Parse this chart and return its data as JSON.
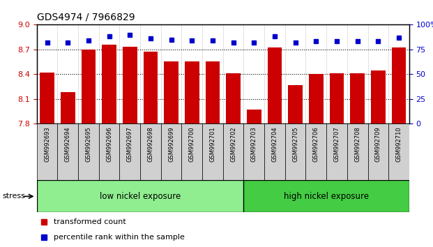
{
  "title": "GDS4974 / 7966829",
  "categories": [
    "GSM992693",
    "GSM992694",
    "GSM992695",
    "GSM992696",
    "GSM992697",
    "GSM992698",
    "GSM992699",
    "GSM992700",
    "GSM992701",
    "GSM992702",
    "GSM992703",
    "GSM992704",
    "GSM992705",
    "GSM992706",
    "GSM992707",
    "GSM992708",
    "GSM992709",
    "GSM992710"
  ],
  "bar_values": [
    8.42,
    8.18,
    8.7,
    8.76,
    8.73,
    8.67,
    8.55,
    8.55,
    8.55,
    8.41,
    7.97,
    8.72,
    8.27,
    8.4,
    8.41,
    8.41,
    8.44,
    8.72
  ],
  "percentile_values": [
    82,
    82,
    84,
    88,
    90,
    86,
    85,
    84,
    84,
    82,
    82,
    88,
    82,
    83,
    83,
    83,
    83,
    87
  ],
  "bar_color": "#cc0000",
  "percentile_color": "#0000cc",
  "ylim_left": [
    7.8,
    9.0
  ],
  "ylim_right": [
    0,
    100
  ],
  "yticks_left": [
    7.8,
    8.1,
    8.4,
    8.7,
    9.0
  ],
  "yticks_right": [
    0,
    25,
    50,
    75,
    100
  ],
  "group1_label": "low nickel exposure",
  "group2_label": "high nickel exposure",
  "group1_count": 10,
  "group1_color": "#90ee90",
  "group2_color": "#44cc44",
  "stress_label": "stress",
  "legend_bar_label": "transformed count",
  "legend_pct_label": "percentile rank within the sample",
  "tick_label_color_left": "#cc0000",
  "tick_label_color_right": "#0000cc",
  "bar_width": 0.7,
  "plot_bg": "#e8e8e8",
  "col_sep_color": "#ffffff"
}
